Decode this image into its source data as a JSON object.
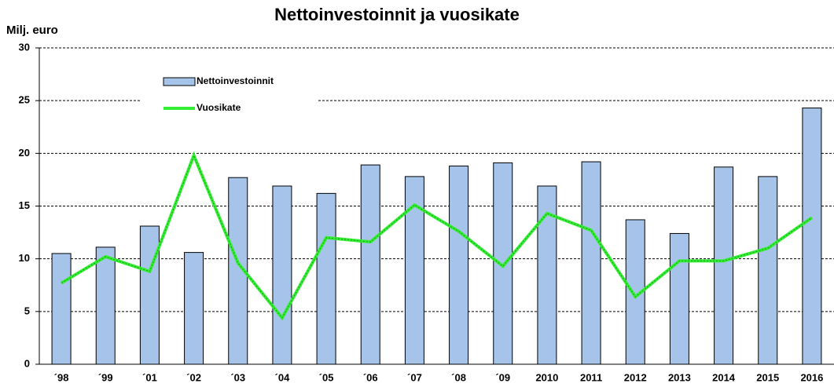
{
  "chart_data": {
    "type": "bar",
    "title": "Nettoinvestoinnit ja vuosikate",
    "y_label": "Milj. euro",
    "categories": [
      "´98",
      "´99",
      "´01",
      "´02",
      "´03",
      "´04",
      "´05",
      "´06",
      "´07",
      "´08",
      "´09",
      "2010",
      "2011",
      "2012",
      "2013",
      "2014",
      "2015",
      "2016"
    ],
    "series": [
      {
        "name": "Nettoinvestoinnit",
        "type": "bar",
        "color": "#a6c4ea",
        "values": [
          10.5,
          11.1,
          13.1,
          10.6,
          17.7,
          16.9,
          16.2,
          18.9,
          17.8,
          18.8,
          19.1,
          16.9,
          19.2,
          13.7,
          12.4,
          18.7,
          17.8,
          24.3
        ]
      },
      {
        "name": "Vuosikate",
        "type": "line",
        "color": "#33ee33",
        "values": [
          7.7,
          10.2,
          8.8,
          19.8,
          9.6,
          4.4,
          12.0,
          11.6,
          15.1,
          12.6,
          9.3,
          14.3,
          12.7,
          6.4,
          9.8,
          9.8,
          11.0,
          13.9
        ]
      }
    ],
    "ylim": [
      0,
      30
    ],
    "yticks": [
      0,
      5,
      10,
      15,
      20,
      25,
      30
    ],
    "grid": true,
    "legend": "upper left"
  }
}
